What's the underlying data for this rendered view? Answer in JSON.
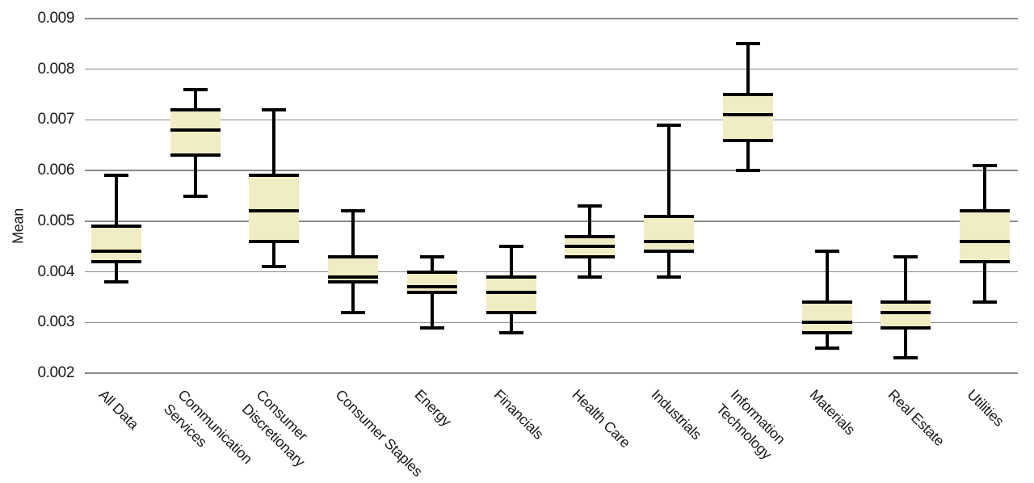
{
  "style": {
    "background": "#ffffff",
    "box_fill": "#f0edc5",
    "line_color": "#000000",
    "grid_color": "#8a8a8a",
    "text_color": "#1a1a1a"
  },
  "chart_data": {
    "type": "boxplot",
    "title": "",
    "ylabel": "Mean",
    "xlabel": "",
    "ylim": [
      0.002,
      0.009
    ],
    "ytick_step": 0.001,
    "yticks": [
      "0.009",
      "0.008",
      "0.007",
      "0.006",
      "0.005",
      "0.004",
      "0.003",
      "0.002"
    ],
    "grid": true,
    "legend": false,
    "categories": [
      {
        "label": "All Data",
        "lines": [
          "All Data"
        ],
        "whisker_low": 0.0038,
        "q1": 0.0042,
        "median": 0.0044,
        "q3": 0.0049,
        "whisker_high": 0.0059
      },
      {
        "label": "Communication Services",
        "lines": [
          "Communication",
          "Services"
        ],
        "whisker_low": 0.0055,
        "q1": 0.0063,
        "median": 0.0068,
        "q3": 0.0072,
        "whisker_high": 0.0076
      },
      {
        "label": "Consumer Discretionary",
        "lines": [
          "Consumer",
          "Discretionary"
        ],
        "whisker_low": 0.0041,
        "q1": 0.0046,
        "median": 0.0052,
        "q3": 0.0059,
        "whisker_high": 0.0072
      },
      {
        "label": "Consumer Staples",
        "lines": [
          "Consumer Staples"
        ],
        "whisker_low": 0.0032,
        "q1": 0.0038,
        "median": 0.0039,
        "q3": 0.0043,
        "whisker_high": 0.0052
      },
      {
        "label": "Energy",
        "lines": [
          "Energy"
        ],
        "whisker_low": 0.0029,
        "q1": 0.0036,
        "median": 0.0037,
        "q3": 0.004,
        "whisker_high": 0.0043
      },
      {
        "label": "Financials",
        "lines": [
          "Financials"
        ],
        "whisker_low": 0.0028,
        "q1": 0.0032,
        "median": 0.0036,
        "q3": 0.0039,
        "whisker_high": 0.0045
      },
      {
        "label": "Health Care",
        "lines": [
          "Health Care"
        ],
        "whisker_low": 0.0039,
        "q1": 0.0043,
        "median": 0.0045,
        "q3": 0.0047,
        "whisker_high": 0.0053
      },
      {
        "label": "Industrials",
        "lines": [
          "Industrials"
        ],
        "whisker_low": 0.0039,
        "q1": 0.0044,
        "median": 0.0046,
        "q3": 0.0051,
        "whisker_high": 0.0069
      },
      {
        "label": "Information Technology",
        "lines": [
          "Information",
          "Technology"
        ],
        "whisker_low": 0.006,
        "q1": 0.0066,
        "median": 0.0071,
        "q3": 0.0075,
        "whisker_high": 0.0085
      },
      {
        "label": "Materials",
        "lines": [
          "Materials"
        ],
        "whisker_low": 0.0025,
        "q1": 0.0028,
        "median": 0.003,
        "q3": 0.0034,
        "whisker_high": 0.0044
      },
      {
        "label": "Real Estate",
        "lines": [
          "Real Estate"
        ],
        "whisker_low": 0.0023,
        "q1": 0.0029,
        "median": 0.0032,
        "q3": 0.0034,
        "whisker_high": 0.0043
      },
      {
        "label": "Utilities",
        "lines": [
          "Utilities"
        ],
        "whisker_low": 0.0034,
        "q1": 0.0042,
        "median": 0.0046,
        "q3": 0.0052,
        "whisker_high": 0.0061
      }
    ]
  }
}
